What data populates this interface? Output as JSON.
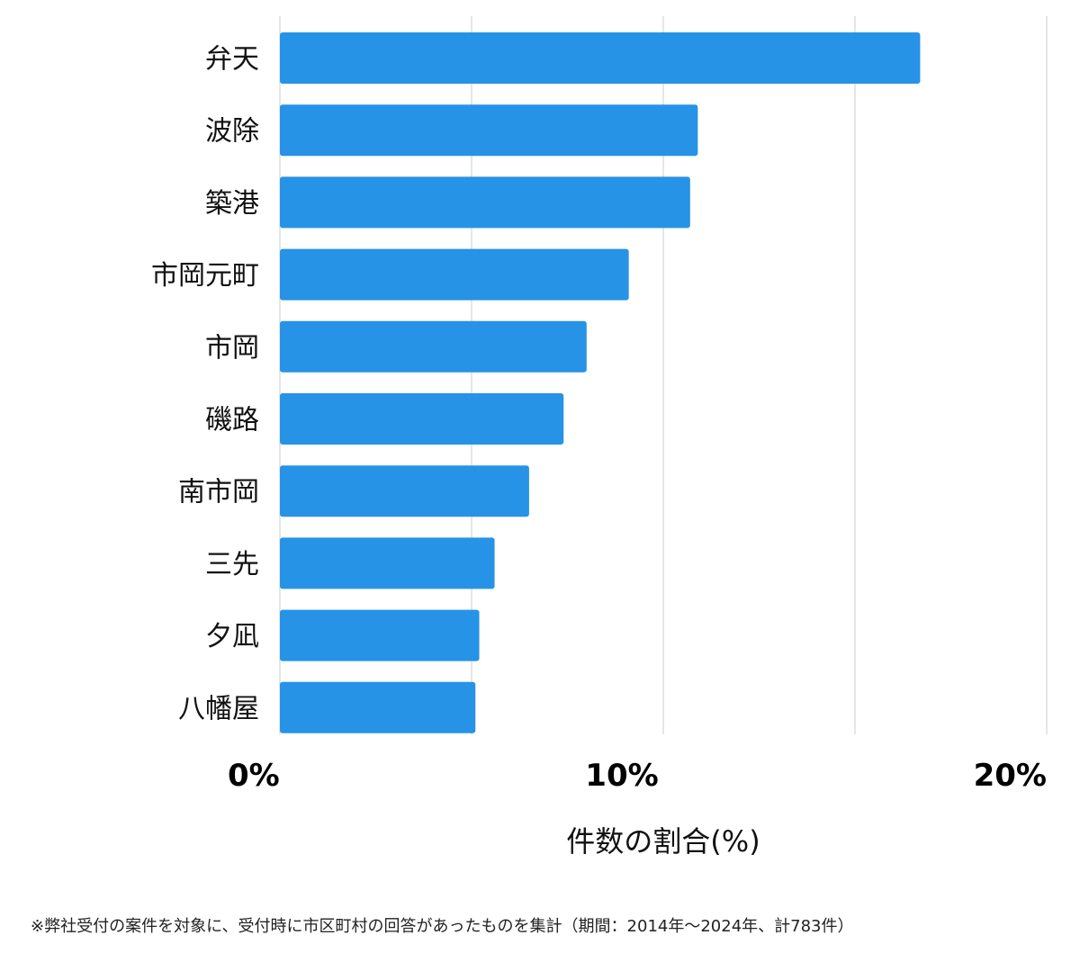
{
  "chart_data": {
    "type": "bar",
    "orientation": "horizontal",
    "categories": [
      "弁天",
      "波除",
      "築港",
      "市岡元町",
      "市岡",
      "磯路",
      "南市岡",
      "三先",
      "夕凪",
      "八幡屋"
    ],
    "values": [
      16.7,
      10.9,
      10.7,
      9.1,
      8.0,
      7.4,
      6.5,
      5.6,
      5.2,
      5.1
    ],
    "xlabel": "件数の割合(%)",
    "xlim": [
      0,
      20
    ],
    "xticks": [
      0,
      10,
      20
    ],
    "xtick_labels": [
      "0%",
      "10%",
      "20%"
    ],
    "grid": true,
    "bar_color": "#2693e6",
    "grid_color": "#dddddd"
  },
  "footnote": "※弊社受付の案件を対象に、受付時に市区町村の回答があったものを集計（期間：2014年～2024年、計783件）"
}
